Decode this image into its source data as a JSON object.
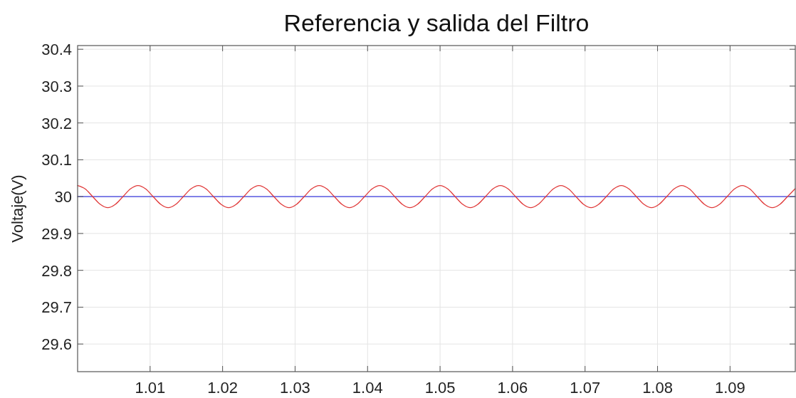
{
  "chart_data": {
    "type": "line",
    "title": "Referencia y salida del Filtro",
    "ylabel": "Voltaje(V)",
    "xlim": [
      1.0,
      1.099
    ],
    "ylim": [
      29.525,
      30.41
    ],
    "xticks": [
      1.01,
      1.02,
      1.03,
      1.04,
      1.05,
      1.06,
      1.07,
      1.08,
      1.09
    ],
    "yticks": [
      29.6,
      29.7,
      29.8,
      29.9,
      30,
      30.1,
      30.2,
      30.3,
      30.4
    ],
    "grid": true,
    "line_style": "solid",
    "marker": "none",
    "series": [
      {
        "color": "#3c3ce0",
        "x": [
          1.0,
          1.099
        ],
        "values": [
          30,
          30
        ]
      },
      {
        "color": "#e03a3a",
        "x": [
          1.0,
          1.00104,
          1.00208,
          1.00313,
          1.00417,
          1.00521,
          1.00625,
          1.00729,
          1.00833,
          1.00938,
          1.01042,
          1.01146,
          1.0125,
          1.01354,
          1.01458,
          1.01563,
          1.01667,
          1.01771,
          1.01875,
          1.01979,
          1.02083,
          1.02188,
          1.02292,
          1.02396,
          1.025,
          1.02604,
          1.02708,
          1.02813,
          1.02917,
          1.03021,
          1.03125,
          1.03229,
          1.03333,
          1.03438,
          1.03542,
          1.03646,
          1.0375,
          1.03854,
          1.03958,
          1.04063,
          1.04167,
          1.04271,
          1.04375,
          1.04479,
          1.04583,
          1.04688,
          1.04792,
          1.04896,
          1.05,
          1.05104,
          1.05208,
          1.05313,
          1.05417,
          1.05521,
          1.05625,
          1.05729,
          1.05833,
          1.05938,
          1.06042,
          1.06146,
          1.0625,
          1.06354,
          1.06458,
          1.06563,
          1.06667,
          1.06771,
          1.06875,
          1.06979,
          1.07083,
          1.07188,
          1.07292,
          1.07396,
          1.075,
          1.07604,
          1.07708,
          1.07813,
          1.07917,
          1.08021,
          1.08125,
          1.08229,
          1.08333,
          1.08438,
          1.08542,
          1.08646,
          1.0875,
          1.08854,
          1.08958,
          1.09063,
          1.09167,
          1.09271,
          1.09375,
          1.09479,
          1.09583,
          1.09688,
          1.09792,
          1.09896
        ],
        "values": [
          30.03,
          30.021,
          30,
          29.979,
          29.97,
          29.979,
          30,
          30.021,
          30.03,
          30.021,
          30,
          29.979,
          29.97,
          29.979,
          30,
          30.021,
          30.03,
          30.021,
          30,
          29.979,
          29.97,
          29.979,
          30,
          30.021,
          30.03,
          30.021,
          30,
          29.979,
          29.97,
          29.979,
          30,
          30.021,
          30.03,
          30.021,
          30,
          29.979,
          29.97,
          29.979,
          30,
          30.021,
          30.03,
          30.021,
          30,
          29.979,
          29.97,
          29.979,
          30,
          30.021,
          30.03,
          30.021,
          30,
          29.979,
          29.97,
          29.979,
          30,
          30.021,
          30.03,
          30.021,
          30,
          29.979,
          29.97,
          29.979,
          30,
          30.021,
          30.03,
          30.021,
          30,
          29.979,
          29.97,
          29.979,
          30,
          30.021,
          30.03,
          30.021,
          30,
          29.979,
          29.97,
          29.979,
          30,
          30.021,
          30.03,
          30.021,
          30,
          29.979,
          29.97,
          29.979,
          30,
          30.021,
          30.03,
          30.021,
          30,
          29.979,
          29.97,
          29.979,
          30,
          30.021
        ]
      }
    ]
  }
}
